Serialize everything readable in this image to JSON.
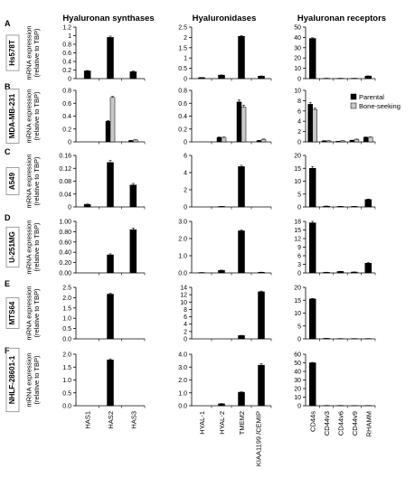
{
  "columns": [
    "Hyaluronan synthases",
    "Hyaluronidases",
    "Hyaluronan receptors"
  ],
  "ylabel_line1": "mRNA expression",
  "ylabel_line2": "(relative to TBP)",
  "legend": {
    "parental": "Parental",
    "bone_seeking": "Bone-seeking"
  },
  "colors": {
    "parental": "#000000",
    "bone_seeking": "#c8c8c8",
    "axis": "#000000"
  },
  "categories": [
    [
      "HAS1",
      "HAS2",
      "HAS3"
    ],
    [
      "HYAL-1",
      "HYAL-2",
      "TMEM2",
      "KIAA1199 /CEMIP"
    ],
    [
      "CD44s",
      "CD44v3",
      "CD44v6",
      "CD44v9",
      "RHAMM"
    ]
  ],
  "chart_data": [
    {
      "type": "bar",
      "panel": "A",
      "cell_line": "Hs578T",
      "series": [
        {
          "name": "",
          "values_by_group": [
            [
              0.18,
              0.96,
              0.16
            ],
            [
              0.05,
              0.17,
              2.05,
              0.12
            ],
            [
              39,
              0.3,
              0.3,
              0.3,
              2.5
            ]
          ]
        }
      ],
      "errors": [
        [
          0.01,
          0.03,
          0.015
        ],
        [
          0.005,
          0.01,
          0.04,
          0.01
        ],
        [
          0.6,
          0.05,
          0.05,
          0.05,
          0.2
        ]
      ],
      "yticks": [
        [
          "0",
          "0.2",
          "0.4",
          "0.6",
          "0.8",
          "1",
          "1.2"
        ],
        [
          "0",
          "0.5",
          "1",
          "1.5",
          "2",
          "2.5"
        ],
        [
          "0",
          "10",
          "20",
          "30",
          "40",
          "50"
        ]
      ],
      "ylim": [
        [
          0,
          1.2
        ],
        [
          0,
          2.5
        ],
        [
          0,
          50
        ]
      ]
    },
    {
      "type": "bar",
      "panel": "B",
      "cell_line": "MDA-MB-231",
      "show_legend": true,
      "series": [
        {
          "name": "Parental",
          "values_by_group": [
            [
              0,
              0.32,
              0.02
            ],
            [
              0,
              0.07,
              0.62,
              0.02
            ],
            [
              7.3,
              0.2,
              0.1,
              0.3,
              0.9
            ]
          ]
        },
        {
          "name": "Bone-seeking",
          "values_by_group": [
            [
              0,
              0.69,
              0.03
            ],
            [
              0,
              0.07,
              0.54,
              0.04
            ],
            [
              6.3,
              0.2,
              0.2,
              0.5,
              0.9
            ]
          ]
        }
      ],
      "errors": [
        [
          [
            0,
            0.01,
            0.003
          ],
          [
            0,
            0.005,
            0.03,
            0.003
          ],
          [
            0.3,
            0.03,
            0.03,
            0.03,
            0.05
          ]
        ],
        [
          [
            0,
            0.015,
            0.004
          ],
          [
            0,
            0.005,
            0.03,
            0.004
          ],
          [
            0.25,
            0.03,
            0.03,
            0.04,
            0.05
          ]
        ]
      ],
      "yticks": [
        [
          "0",
          "0.2",
          "0.4",
          "0.6",
          "0.8"
        ],
        [
          "0",
          "0.2",
          "0.4",
          "0.6",
          "0.8"
        ],
        [
          "0",
          "2",
          "4",
          "6",
          "8",
          "10"
        ]
      ],
      "ylim": [
        [
          0,
          0.8
        ],
        [
          0,
          0.8
        ],
        [
          0,
          10
        ]
      ]
    },
    {
      "type": "bar",
      "panel": "C",
      "cell_line": "A549",
      "series": [
        {
          "name": "",
          "values_by_group": [
            [
              0.008,
              0.138,
              0.068
            ],
            [
              0,
              0.06,
              4.7,
              0
            ],
            [
              15,
              0.3,
              0.2,
              0.2,
              2.9
            ]
          ]
        }
      ],
      "errors": [
        [
          0.001,
          0.006,
          0.005
        ],
        [
          0,
          0.005,
          0.15,
          0
        ],
        [
          0.7,
          0.05,
          0.05,
          0.05,
          0.15
        ]
      ],
      "yticks": [
        [
          "0",
          "0.04",
          "0.08",
          "0.12",
          "0.16"
        ],
        [
          "0",
          "2",
          "4",
          "6"
        ],
        [
          "0",
          "5",
          "10",
          "15",
          "20"
        ]
      ],
      "ylim": [
        [
          0,
          0.16
        ],
        [
          0,
          6
        ],
        [
          0,
          20
        ]
      ]
    },
    {
      "type": "bar",
      "panel": "D",
      "cell_line": "U-251MG",
      "series": [
        {
          "name": "",
          "values_by_group": [
            [
              0,
              0.35,
              0.84
            ],
            [
              0.02,
              0.15,
              2.45,
              0.04
            ],
            [
              17.5,
              0.2,
              0.5,
              0.3,
              3.4
            ]
          ]
        }
      ],
      "errors": [
        [
          0,
          0.02,
          0.03
        ],
        [
          0.003,
          0.01,
          0.05,
          0.005
        ],
        [
          0.5,
          0.05,
          0.05,
          0.05,
          0.2
        ]
      ],
      "yticks": [
        [
          "0.00",
          "0.20",
          "0.40",
          "0.60",
          "0.80",
          "1.00"
        ],
        [
          "0.0",
          "1.0",
          "2.0",
          "3.0"
        ],
        [
          "0",
          "3",
          "6",
          "9",
          "12",
          "15",
          "18"
        ]
      ],
      "ylim": [
        [
          0,
          1.0
        ],
        [
          0,
          3.0
        ],
        [
          0,
          18
        ]
      ]
    },
    {
      "type": "bar",
      "panel": "E",
      "cell_line": "MTS64",
      "series": [
        {
          "name": "",
          "values_by_group": [
            [
              0,
              2.17,
              0
            ],
            [
              0,
              0,
              0.9,
              12.8
            ],
            [
              15.5,
              0.2,
              0.1,
              0.1,
              0.1
            ]
          ]
        }
      ],
      "errors": [
        [
          0,
          0.04,
          0
        ],
        [
          0,
          0,
          0.05,
          0.2
        ],
        [
          0.2,
          0.02,
          0.02,
          0.02,
          0.02
        ]
      ],
      "yticks": [
        [
          "0.0",
          "0.5",
          "1.0",
          "1.5",
          "2.0",
          "2.5"
        ],
        [
          "0",
          "2",
          "4",
          "6",
          "8",
          "10",
          "12",
          "14"
        ],
        [
          "0",
          "5",
          "10",
          "15",
          "20"
        ]
      ],
      "ylim": [
        [
          0,
          2.5
        ],
        [
          0,
          14
        ],
        [
          0,
          20
        ]
      ]
    },
    {
      "type": "bar",
      "panel": "F",
      "cell_line": "NHLF-28601-1",
      "series": [
        {
          "name": "",
          "values_by_group": [
            [
              0,
              1.78,
              0
            ],
            [
              0,
              0.15,
              1.05,
              3.15
            ],
            [
              50,
              0.3,
              0.3,
              0.2,
              0.2
            ]
          ]
        }
      ],
      "errors": [
        [
          0,
          0.04,
          0
        ],
        [
          0,
          0.02,
          0.03,
          0.1
        ],
        [
          0.5,
          0.05,
          0.05,
          0.05,
          0.05
        ]
      ],
      "yticks": [
        [
          "0.0",
          "0.5",
          "1.0",
          "1.5",
          "2.0"
        ],
        [
          "0.0",
          "1.0",
          "2.0",
          "3.0",
          "4.0"
        ],
        [
          "0",
          "10",
          "20",
          "30",
          "40",
          "50",
          "60"
        ]
      ],
      "ylim": [
        [
          0,
          2.0
        ],
        [
          0,
          4.0
        ],
        [
          0,
          60
        ]
      ]
    }
  ]
}
